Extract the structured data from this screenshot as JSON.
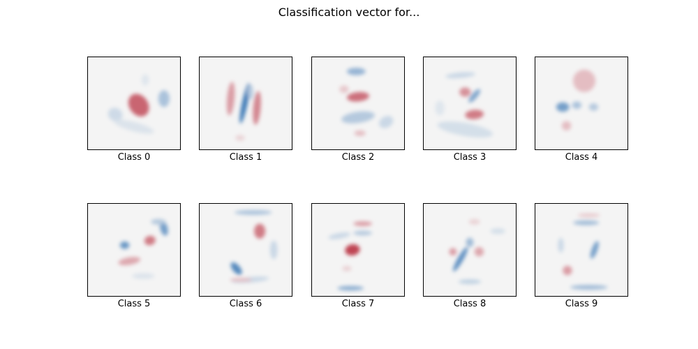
{
  "title": "Classification vector for...",
  "chart_data": {
    "type": "heatmap",
    "title": "Classification vector for...",
    "colormap": "RdBu",
    "neutral_color": "#f4f4f4",
    "red_color": "#b2182b",
    "blue_color": "#2166ac",
    "grid": false,
    "panels": [
      {
        "label": "Class 0",
        "blobs": [
          {
            "cx": 0.55,
            "cy": 0.52,
            "rx": 0.1,
            "ry": 0.13,
            "a": -35,
            "v": 0.65
          },
          {
            "cx": 0.82,
            "cy": 0.45,
            "rx": 0.06,
            "ry": 0.09,
            "a": 0,
            "v": -0.35
          },
          {
            "cx": 0.3,
            "cy": 0.62,
            "rx": 0.08,
            "ry": 0.07,
            "a": 30,
            "v": -0.18
          },
          {
            "cx": 0.5,
            "cy": 0.75,
            "rx": 0.22,
            "ry": 0.05,
            "a": 15,
            "v": -0.12
          },
          {
            "cx": 0.62,
            "cy": 0.25,
            "rx": 0.04,
            "ry": 0.06,
            "a": 0,
            "v": -0.1
          }
        ]
      },
      {
        "label": "Class 1",
        "blobs": [
          {
            "cx": 0.49,
            "cy": 0.5,
            "rx": 0.03,
            "ry": 0.22,
            "a": 12,
            "v": -0.85
          },
          {
            "cx": 0.34,
            "cy": 0.45,
            "rx": 0.04,
            "ry": 0.18,
            "a": 5,
            "v": 0.4
          },
          {
            "cx": 0.62,
            "cy": 0.55,
            "rx": 0.04,
            "ry": 0.18,
            "a": 5,
            "v": 0.5
          },
          {
            "cx": 0.55,
            "cy": 0.38,
            "rx": 0.03,
            "ry": 0.08,
            "a": 0,
            "v": -0.3
          },
          {
            "cx": 0.44,
            "cy": 0.87,
            "rx": 0.05,
            "ry": 0.03,
            "a": 0,
            "v": 0.15
          }
        ]
      },
      {
        "label": "Class 2",
        "blobs": [
          {
            "cx": 0.5,
            "cy": 0.43,
            "rx": 0.12,
            "ry": 0.05,
            "a": -5,
            "v": 0.6
          },
          {
            "cx": 0.5,
            "cy": 0.65,
            "rx": 0.18,
            "ry": 0.06,
            "a": -8,
            "v": -0.3
          },
          {
            "cx": 0.48,
            "cy": 0.16,
            "rx": 0.1,
            "ry": 0.04,
            "a": 0,
            "v": -0.45
          },
          {
            "cx": 0.8,
            "cy": 0.7,
            "rx": 0.08,
            "ry": 0.06,
            "a": -30,
            "v": -0.2
          },
          {
            "cx": 0.52,
            "cy": 0.82,
            "rx": 0.06,
            "ry": 0.03,
            "a": 0,
            "v": 0.25
          },
          {
            "cx": 0.35,
            "cy": 0.35,
            "rx": 0.05,
            "ry": 0.04,
            "a": 0,
            "v": 0.2
          }
        ]
      },
      {
        "label": "Class 3",
        "blobs": [
          {
            "cx": 0.45,
            "cy": 0.38,
            "rx": 0.06,
            "ry": 0.05,
            "a": 0,
            "v": 0.45
          },
          {
            "cx": 0.55,
            "cy": 0.62,
            "rx": 0.1,
            "ry": 0.05,
            "a": -5,
            "v": 0.55
          },
          {
            "cx": 0.55,
            "cy": 0.42,
            "rx": 0.03,
            "ry": 0.09,
            "a": 40,
            "v": -0.55
          },
          {
            "cx": 0.4,
            "cy": 0.2,
            "rx": 0.16,
            "ry": 0.03,
            "a": -5,
            "v": -0.2
          },
          {
            "cx": 0.45,
            "cy": 0.78,
            "rx": 0.3,
            "ry": 0.07,
            "a": 10,
            "v": -0.15
          },
          {
            "cx": 0.18,
            "cy": 0.55,
            "rx": 0.05,
            "ry": 0.08,
            "a": 0,
            "v": -0.1
          }
        ]
      },
      {
        "label": "Class 4",
        "blobs": [
          {
            "cx": 0.53,
            "cy": 0.26,
            "rx": 0.06,
            "ry": 0.06,
            "a": 0,
            "v": 1.0
          },
          {
            "cx": 0.53,
            "cy": 0.26,
            "rx": 0.12,
            "ry": 0.12,
            "a": 0,
            "v": 0.25
          },
          {
            "cx": 0.3,
            "cy": 0.54,
            "rx": 0.07,
            "ry": 0.05,
            "a": 0,
            "v": -0.6
          },
          {
            "cx": 0.45,
            "cy": 0.52,
            "rx": 0.05,
            "ry": 0.04,
            "a": 0,
            "v": -0.35
          },
          {
            "cx": 0.63,
            "cy": 0.54,
            "rx": 0.05,
            "ry": 0.04,
            "a": 0,
            "v": -0.3
          },
          {
            "cx": 0.34,
            "cy": 0.74,
            "rx": 0.05,
            "ry": 0.05,
            "a": 0,
            "v": 0.25
          }
        ]
      },
      {
        "label": "Class 5",
        "blobs": [
          {
            "cx": 0.4,
            "cy": 0.45,
            "rx": 0.05,
            "ry": 0.04,
            "a": 0,
            "v": -0.65
          },
          {
            "cx": 0.67,
            "cy": 0.4,
            "rx": 0.06,
            "ry": 0.05,
            "a": -15,
            "v": 0.55
          },
          {
            "cx": 0.45,
            "cy": 0.62,
            "rx": 0.12,
            "ry": 0.04,
            "a": -10,
            "v": 0.35
          },
          {
            "cx": 0.82,
            "cy": 0.27,
            "rx": 0.04,
            "ry": 0.08,
            "a": -15,
            "v": -0.6
          },
          {
            "cx": 0.76,
            "cy": 0.2,
            "rx": 0.08,
            "ry": 0.03,
            "a": 0,
            "v": -0.3
          },
          {
            "cx": 0.6,
            "cy": 0.78,
            "rx": 0.12,
            "ry": 0.03,
            "a": 0,
            "v": -0.12
          }
        ]
      },
      {
        "label": "Class 6",
        "blobs": [
          {
            "cx": 0.65,
            "cy": 0.3,
            "rx": 0.06,
            "ry": 0.08,
            "a": 0,
            "v": 0.55
          },
          {
            "cx": 0.4,
            "cy": 0.7,
            "rx": 0.04,
            "ry": 0.08,
            "a": -40,
            "v": -0.75
          },
          {
            "cx": 0.58,
            "cy": 0.1,
            "rx": 0.2,
            "ry": 0.025,
            "a": 0,
            "v": -0.35
          },
          {
            "cx": 0.8,
            "cy": 0.5,
            "rx": 0.04,
            "ry": 0.1,
            "a": 0,
            "v": -0.2
          },
          {
            "cx": 0.55,
            "cy": 0.82,
            "rx": 0.2,
            "ry": 0.03,
            "a": -5,
            "v": -0.2
          },
          {
            "cx": 0.45,
            "cy": 0.82,
            "rx": 0.12,
            "ry": 0.02,
            "a": 0,
            "v": 0.25
          }
        ]
      },
      {
        "label": "Class 7",
        "blobs": [
          {
            "cx": 0.44,
            "cy": 0.5,
            "rx": 0.08,
            "ry": 0.06,
            "a": -10,
            "v": 0.8
          },
          {
            "cx": 0.55,
            "cy": 0.22,
            "rx": 0.1,
            "ry": 0.025,
            "a": 0,
            "v": 0.4
          },
          {
            "cx": 0.55,
            "cy": 0.32,
            "rx": 0.1,
            "ry": 0.025,
            "a": 0,
            "v": -0.3
          },
          {
            "cx": 0.3,
            "cy": 0.35,
            "rx": 0.12,
            "ry": 0.03,
            "a": -10,
            "v": -0.2
          },
          {
            "cx": 0.42,
            "cy": 0.91,
            "rx": 0.14,
            "ry": 0.025,
            "a": 0,
            "v": -0.5
          },
          {
            "cx": 0.38,
            "cy": 0.7,
            "rx": 0.05,
            "ry": 0.03,
            "a": 0,
            "v": 0.15
          }
        ]
      },
      {
        "label": "Class 8",
        "blobs": [
          {
            "cx": 0.4,
            "cy": 0.6,
            "rx": 0.03,
            "ry": 0.15,
            "a": 30,
            "v": -0.7
          },
          {
            "cx": 0.32,
            "cy": 0.52,
            "rx": 0.04,
            "ry": 0.04,
            "a": 0,
            "v": 0.4
          },
          {
            "cx": 0.6,
            "cy": 0.52,
            "rx": 0.05,
            "ry": 0.05,
            "a": 0,
            "v": 0.35
          },
          {
            "cx": 0.5,
            "cy": 0.42,
            "rx": 0.04,
            "ry": 0.05,
            "a": 0,
            "v": -0.4
          },
          {
            "cx": 0.5,
            "cy": 0.84,
            "rx": 0.12,
            "ry": 0.025,
            "a": 0,
            "v": -0.25
          },
          {
            "cx": 0.8,
            "cy": 0.3,
            "rx": 0.08,
            "ry": 0.03,
            "a": 0,
            "v": -0.15
          },
          {
            "cx": 0.55,
            "cy": 0.2,
            "rx": 0.06,
            "ry": 0.03,
            "a": 0,
            "v": 0.15
          }
        ]
      },
      {
        "label": "Class 9",
        "blobs": [
          {
            "cx": 0.64,
            "cy": 0.5,
            "rx": 0.03,
            "ry": 0.1,
            "a": 20,
            "v": -0.6
          },
          {
            "cx": 0.35,
            "cy": 0.72,
            "rx": 0.05,
            "ry": 0.05,
            "a": 0,
            "v": 0.4
          },
          {
            "cx": 0.55,
            "cy": 0.21,
            "rx": 0.14,
            "ry": 0.025,
            "a": 0,
            "v": -0.4
          },
          {
            "cx": 0.58,
            "cy": 0.13,
            "rx": 0.12,
            "ry": 0.02,
            "a": 0,
            "v": 0.2
          },
          {
            "cx": 0.58,
            "cy": 0.9,
            "rx": 0.2,
            "ry": 0.025,
            "a": 0,
            "v": -0.4
          },
          {
            "cx": 0.28,
            "cy": 0.45,
            "rx": 0.03,
            "ry": 0.08,
            "a": 0,
            "v": -0.2
          }
        ]
      }
    ]
  }
}
